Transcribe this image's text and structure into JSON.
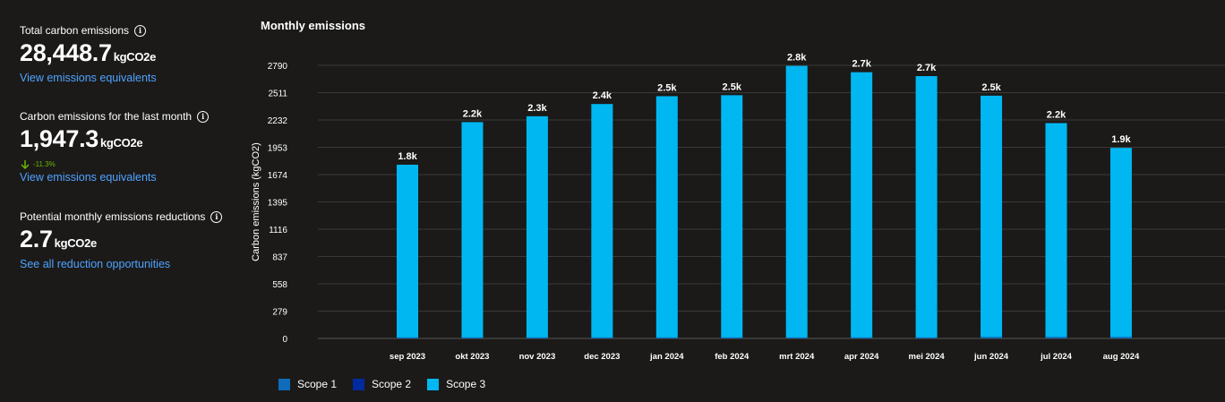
{
  "kpis": {
    "total": {
      "title": "Total carbon emissions",
      "value": "28,448.7",
      "unit": "kgCO2e",
      "link": "View emissions equivalents"
    },
    "last_month": {
      "title": "Carbon emissions for the last month",
      "value": "1,947.3",
      "unit": "kgCO2e",
      "delta": "-11.3%",
      "link": "View emissions equivalents"
    },
    "reductions": {
      "title": "Potential monthly emissions reductions",
      "value": "2.7",
      "unit": "kgCO2e",
      "link": "See all reduction opportunities"
    }
  },
  "colors": {
    "scope1": "#0f6cbd",
    "scope2": "#002b9e",
    "scope3": "#00b7f1",
    "link": "#4fa3ff",
    "delta": "#6bb700"
  },
  "icons": {
    "info": "info-icon",
    "delta": "arrow-down-icon"
  },
  "chart_data": {
    "type": "bar",
    "stacked": true,
    "title": "Monthly emissions",
    "ylabel": "Carbon emissions (kgCO2)",
    "xlabel": "",
    "yticks": [
      0,
      279,
      558,
      837,
      1116,
      1395,
      1674,
      1953,
      2232,
      2511,
      2790
    ],
    "ylim": [
      0,
      2790
    ],
    "grid": true,
    "legend_position": "bottom-left",
    "categories": [
      "sep 2023",
      "okt 2023",
      "nov 2023",
      "dec 2023",
      "jan 2024",
      "feb 2024",
      "mrt 2024",
      "apr 2024",
      "mei 2024",
      "jun 2024",
      "jul 2024",
      "aug 2024"
    ],
    "series": [
      {
        "name": "Scope 1",
        "values": [
          10,
          10,
          10,
          10,
          10,
          10,
          10,
          10,
          10,
          15,
          15,
          15
        ]
      },
      {
        "name": "Scope 2",
        "values": [
          0,
          0,
          0,
          0,
          0,
          0,
          0,
          0,
          0,
          0,
          0,
          0
        ]
      },
      {
        "name": "Scope 3",
        "values": [
          1765,
          2200,
          2260,
          2385,
          2465,
          2475,
          2775,
          2710,
          2670,
          2465,
          2185,
          1932
        ]
      }
    ],
    "data_labels": [
      "1.8k",
      "2.2k",
      "2.3k",
      "2.4k",
      "2.5k",
      "2.5k",
      "2.8k",
      "2.7k",
      "2.7k",
      "2.5k",
      "2.2k",
      "1.9k"
    ]
  }
}
